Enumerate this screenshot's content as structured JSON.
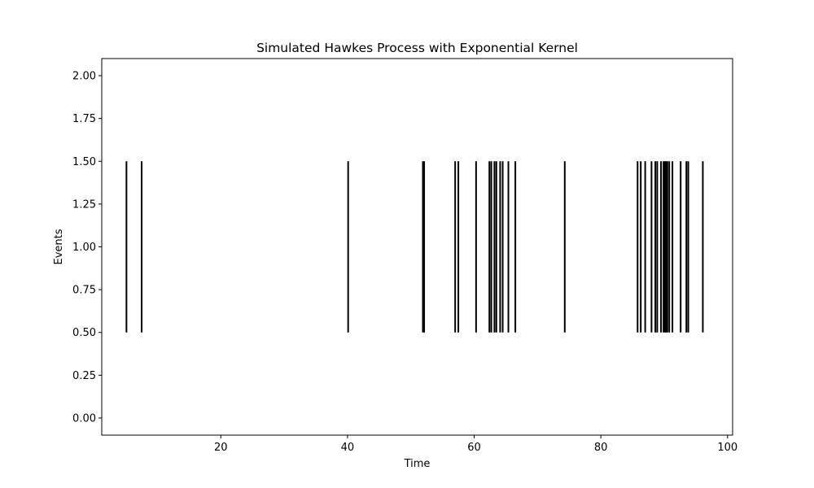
{
  "chart_data": {
    "type": "eventplot",
    "title": "Simulated Hawkes Process with Exponential Kernel",
    "xlabel": "Time",
    "ylabel": "Events",
    "xlim": [
      1.2,
      100.8
    ],
    "ylim": [
      -0.1,
      2.1
    ],
    "x_ticks": [
      "20",
      "40",
      "60",
      "80",
      "100"
    ],
    "y_ticks": [
      "0.00",
      "0.25",
      "0.50",
      "0.75",
      "1.00",
      "1.25",
      "1.50",
      "1.75",
      "2.00"
    ],
    "line_offset": 1.0,
    "line_length": 1.0,
    "color": "#000000",
    "grid": false,
    "legend": false,
    "events": [
      5.1,
      7.5,
      40.1,
      51.9,
      52.1,
      57.0,
      57.5,
      60.3,
      62.4,
      62.7,
      63.2,
      63.5,
      64.1,
      64.5,
      65.4,
      66.5,
      74.3,
      85.8,
      86.3,
      87.0,
      88.0,
      88.6,
      88.9,
      89.5,
      89.9,
      90.1,
      90.3,
      90.5,
      90.8,
      91.3,
      92.6,
      93.5,
      93.8,
      96.1
    ]
  }
}
